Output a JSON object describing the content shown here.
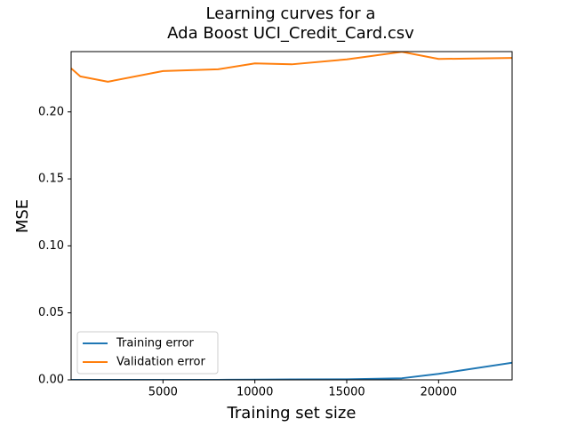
{
  "chart_data": {
    "type": "line",
    "title_lines": [
      "Learning curves for a",
      "Ada Boost UCI_Credit_Card.csv"
    ],
    "xlabel": "Training set size",
    "ylabel": "MSE",
    "xlim": [
      0,
      24000
    ],
    "ylim": [
      0,
      0.245
    ],
    "xticks": [
      5000,
      10000,
      15000,
      20000
    ],
    "xtick_labels": [
      "5000",
      "10000",
      "15000",
      "20000"
    ],
    "yticks": [
      0.0,
      0.05,
      0.1,
      0.15,
      0.2
    ],
    "ytick_labels": [
      "0.00",
      "0.05",
      "0.10",
      "0.15",
      "0.20"
    ],
    "grid": false,
    "legend_position": "lower-left",
    "series": [
      {
        "name": "Training error",
        "color": "#1f77b4",
        "x": [
          1,
          500,
          2000,
          5000,
          8000,
          10000,
          12000,
          15000,
          18000,
          20000,
          24000
        ],
        "y": [
          0.0,
          0.0,
          0.0,
          0.0,
          0.0,
          0.0002,
          0.0003,
          0.0004,
          0.0012,
          0.0045,
          0.0128
        ]
      },
      {
        "name": "Validation error",
        "color": "#ff7f0e",
        "x": [
          1,
          500,
          2000,
          5000,
          8000,
          10000,
          12000,
          15000,
          18000,
          20000,
          24000
        ],
        "y": [
          0.2325,
          0.2265,
          0.2225,
          0.2305,
          0.2318,
          0.2362,
          0.2355,
          0.2392,
          0.2448,
          0.2395,
          0.2403
        ]
      }
    ]
  }
}
